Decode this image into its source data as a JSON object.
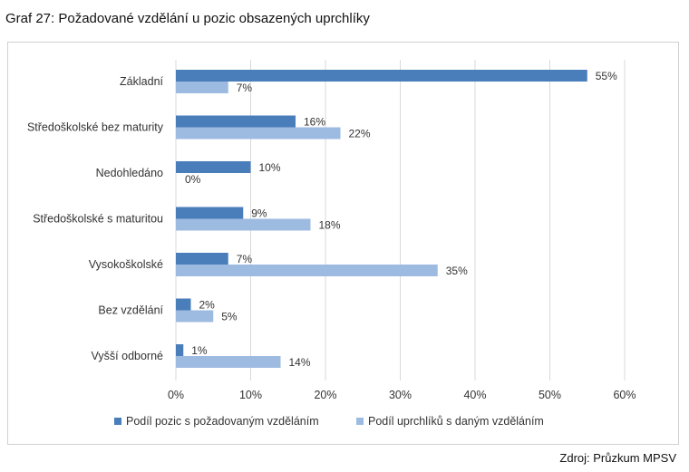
{
  "header": {
    "title": "Graf 27: Požadované vzdělání u pozic obsazených uprchlíky"
  },
  "footer": {
    "source": "Zdroj: Průzkum MPSV"
  },
  "chart_data": {
    "type": "bar",
    "orientation": "horizontal",
    "categories": [
      "Základní",
      "Středoškolské bez maturity",
      "Nedohledáno",
      "Středoškolské s maturitou",
      "Vysokoškolské",
      "Bez vzdělání",
      "Vyšší odborné"
    ],
    "series": [
      {
        "name": "Podíl pozic s požadovaným vzděláním",
        "color": "#4a7ebb",
        "values": [
          55,
          16,
          10,
          9,
          7,
          2,
          1
        ],
        "labels": [
          "55%",
          "16%",
          "10%",
          "9%",
          "7%",
          "2%",
          "1%"
        ]
      },
      {
        "name": "Podíl uprchlíků s daným vzděláním",
        "color": "#9dbbe0",
        "values": [
          7,
          22,
          0,
          18,
          35,
          5,
          14
        ],
        "labels": [
          "7%",
          "22%",
          "0%",
          "18%",
          "35%",
          "5%",
          "14%"
        ]
      }
    ],
    "xlim": [
      0,
      60
    ],
    "xticks": [
      0,
      10,
      20,
      30,
      40,
      50,
      60
    ],
    "xtick_labels": [
      "0%",
      "10%",
      "20%",
      "30%",
      "40%",
      "50%",
      "60%"
    ],
    "grid": "vertical",
    "legend": "bottom"
  }
}
